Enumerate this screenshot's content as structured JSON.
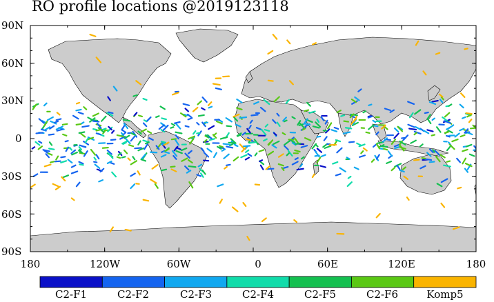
{
  "title": "RO profile locations @2019123118",
  "yaxis": {
    "labels": [
      "90N",
      "60N",
      "30N",
      "0",
      "30S",
      "60S",
      "90S"
    ]
  },
  "xaxis": {
    "labels": [
      "180",
      "120W",
      "60W",
      "0",
      "60E",
      "120E",
      "180"
    ]
  },
  "legend": [
    {
      "label": "C2-F1",
      "color": "#0a10c8"
    },
    {
      "label": "C2-F2",
      "color": "#1464f0"
    },
    {
      "label": "C2-F3",
      "color": "#10a8f0"
    },
    {
      "label": "C2-F4",
      "color": "#10dcaa"
    },
    {
      "label": "C2-F5",
      "color": "#14c050"
    },
    {
      "label": "C2-F6",
      "color": "#5ac814"
    },
    {
      "label": "Komp5",
      "color": "#fab400"
    }
  ],
  "colors": {
    "land": "#cccccc",
    "ocean": "#ffffff",
    "coast": "#000000"
  }
}
